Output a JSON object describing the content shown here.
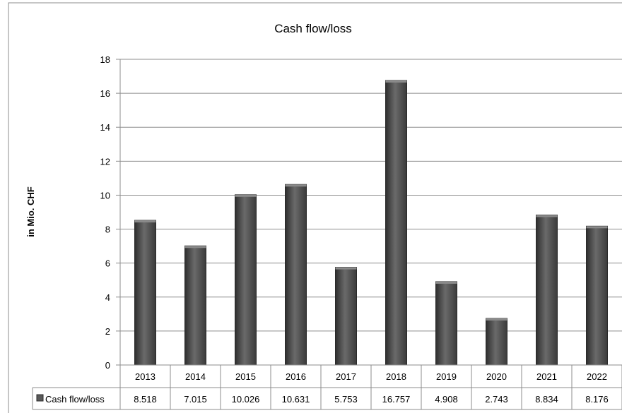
{
  "chart_data": {
    "type": "bar",
    "title": "Cash flow/loss",
    "xlabel": "",
    "ylabel": "in Mio. CHF",
    "ylim": [
      0,
      18
    ],
    "yticks": [
      0,
      2,
      4,
      6,
      8,
      10,
      12,
      14,
      16,
      18
    ],
    "grid": true,
    "legend": "data-table",
    "categories": [
      "2013",
      "2014",
      "2015",
      "2016",
      "2017",
      "2018",
      "2019",
      "2020",
      "2021",
      "2022"
    ],
    "series": [
      {
        "name": "Cash flow/loss",
        "values": [
          8.518,
          7.015,
          10.026,
          10.631,
          5.753,
          16.757,
          4.908,
          2.743,
          8.834,
          8.176
        ],
        "labels": [
          "8.518",
          "7.015",
          "10.026",
          "10.631",
          "5.753",
          "16.757",
          "4.908",
          "2.743",
          "8.834",
          "8.176"
        ],
        "color": "#595959"
      }
    ]
  }
}
